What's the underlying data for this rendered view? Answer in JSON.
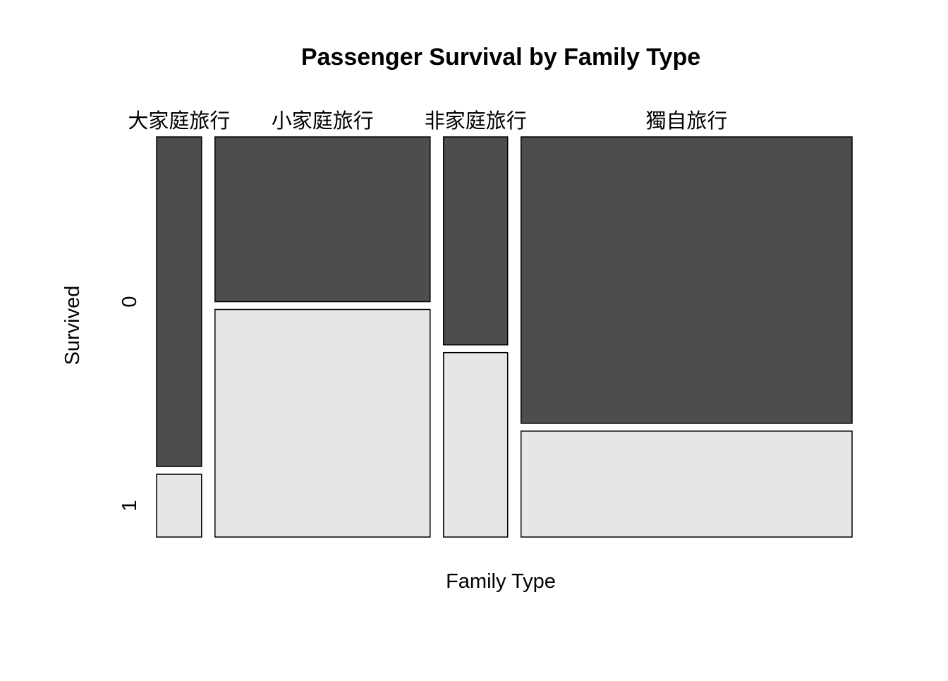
{
  "chart_data": {
    "type": "mosaic",
    "title": "Passenger Survival by Family Type",
    "xlabel": "Family Type",
    "ylabel": "Survived",
    "categories": [
      "大家庭旅行",
      "小家庭旅行",
      "非家庭旅行",
      "獨自旅行"
    ],
    "levels": [
      "0",
      "1"
    ],
    "column_share": [
      0.073,
      0.349,
      0.104,
      0.537
    ],
    "survived_proportion": {
      "0": [
        0.84,
        0.42,
        0.53,
        0.73
      ],
      "1": [
        0.16,
        0.58,
        0.47,
        0.27
      ]
    },
    "colors": {
      "0": "#4d4d4d",
      "1": "#e6e6e6"
    }
  }
}
